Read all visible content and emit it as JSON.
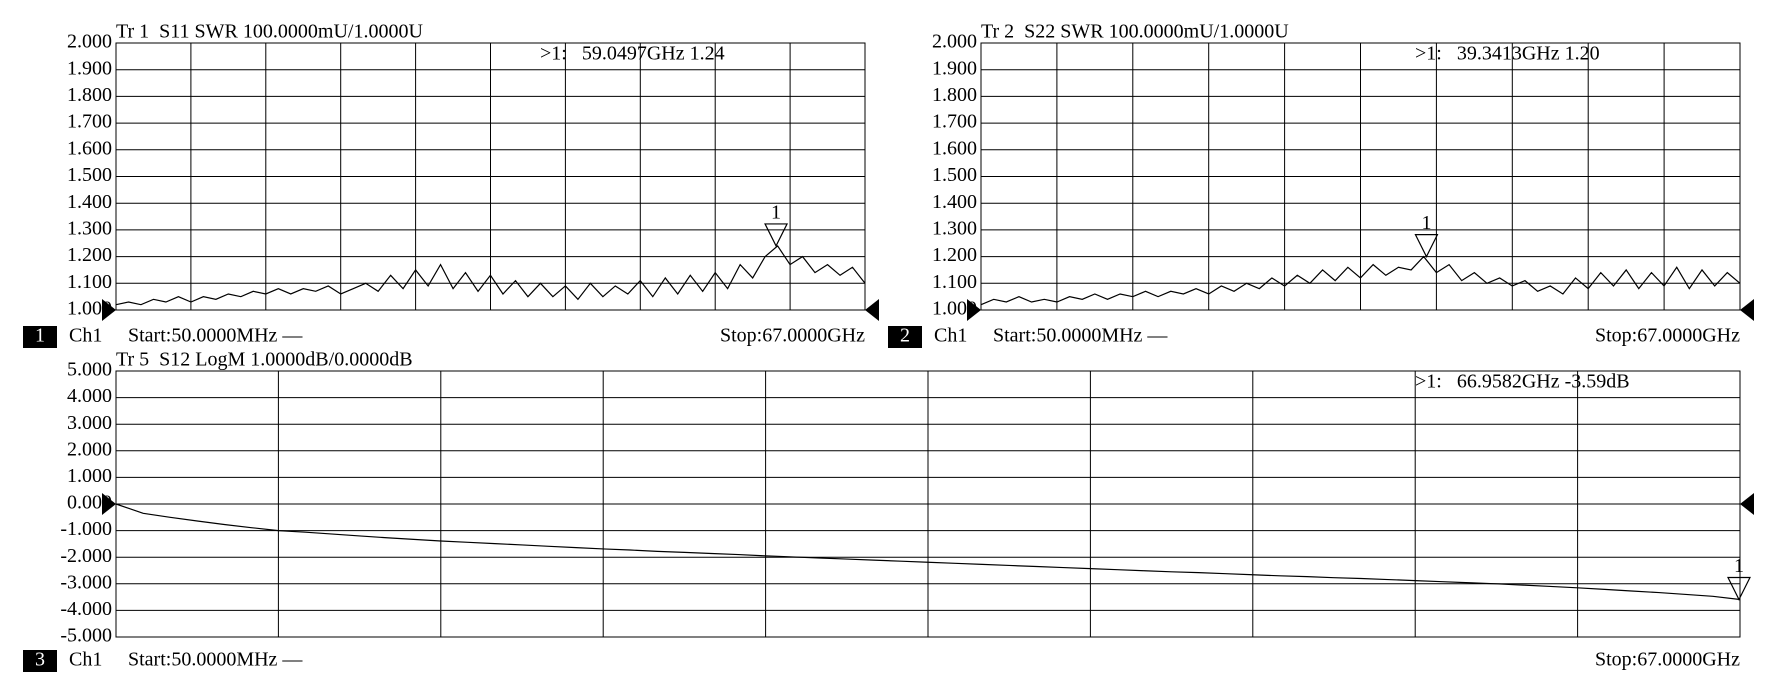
{
  "chart_data": [
    {
      "type": "line",
      "title": "Tr 1  S11 SWR 100.0000mU/1.0000U",
      "channel_number": "1",
      "channel": "Ch1",
      "start_label": "Start:50.0000MHz —",
      "stop_label": "Stop:67.0000GHz",
      "grid": true,
      "reference_level": 1,
      "xlim": [
        0.05,
        67
      ],
      "ylim": [
        1,
        2
      ],
      "yticks": [
        {
          "value": 2,
          "label": "2.000"
        },
        {
          "value": 1.9,
          "label": "1.900"
        },
        {
          "value": 1.8,
          "label": "1.800"
        },
        {
          "value": 1.7,
          "label": "1.700"
        },
        {
          "value": 1.6,
          "label": "1.600"
        },
        {
          "value": 1.5,
          "label": "1.500"
        },
        {
          "value": 1.4,
          "label": "1.400"
        },
        {
          "value": 1.3,
          "label": "1.300"
        },
        {
          "value": 1.2,
          "label": "1.200"
        },
        {
          "value": 1.1,
          "label": "1.100"
        },
        {
          "value": 1,
          "label": "1.000"
        }
      ],
      "x": [
        0.05,
        1.17,
        2.28,
        3.4,
        4.51,
        5.63,
        6.75,
        7.86,
        8.98,
        10.09,
        11.21,
        12.32,
        13.44,
        14.56,
        15.67,
        16.79,
        17.9,
        19.02,
        20.14,
        21.25,
        22.37,
        23.48,
        24.6,
        25.71,
        26.83,
        27.95,
        29.06,
        30.18,
        31.29,
        32.41,
        33.52,
        34.64,
        35.76,
        36.87,
        37.99,
        39.1,
        40.22,
        41.34,
        42.45,
        43.57,
        44.68,
        45.8,
        46.91,
        48.03,
        49.15,
        50.26,
        51.38,
        52.49,
        53.61,
        54.72,
        55.84,
        56.96,
        58.07,
        59.19,
        60.3,
        61.42,
        62.53,
        63.65,
        64.77,
        65.88,
        67.0
      ],
      "series": [
        {
          "name": "S11",
          "color": "#000000",
          "values": [
            1.02,
            1.03,
            1.02,
            1.04,
            1.03,
            1.05,
            1.03,
            1.05,
            1.04,
            1.06,
            1.05,
            1.07,
            1.06,
            1.08,
            1.06,
            1.08,
            1.07,
            1.09,
            1.06,
            1.08,
            1.1,
            1.07,
            1.13,
            1.08,
            1.15,
            1.09,
            1.17,
            1.08,
            1.14,
            1.07,
            1.13,
            1.06,
            1.11,
            1.05,
            1.1,
            1.05,
            1.09,
            1.04,
            1.1,
            1.05,
            1.09,
            1.06,
            1.11,
            1.05,
            1.12,
            1.06,
            1.13,
            1.07,
            1.14,
            1.08,
            1.17,
            1.12,
            1.2,
            1.24,
            1.17,
            1.2,
            1.14,
            1.17,
            1.13,
            1.16,
            1.1
          ]
        }
      ],
      "marker": {
        "label": "1",
        "x": 59.0497,
        "value": 1.24,
        "readout": ">1:   59.0497GHz 1.24"
      }
    },
    {
      "type": "line",
      "title": "Tr 2  S22 SWR 100.0000mU/1.0000U",
      "channel_number": "2",
      "channel": "Ch1",
      "start_label": "Start:50.0000MHz —",
      "stop_label": "Stop:67.0000GHz",
      "grid": true,
      "reference_level": 1,
      "xlim": [
        0.05,
        67
      ],
      "ylim": [
        1,
        2
      ],
      "yticks": [
        {
          "value": 2,
          "label": "2.000"
        },
        {
          "value": 1.9,
          "label": "1.900"
        },
        {
          "value": 1.8,
          "label": "1.800"
        },
        {
          "value": 1.7,
          "label": "1.700"
        },
        {
          "value": 1.6,
          "label": "1.600"
        },
        {
          "value": 1.5,
          "label": "1.500"
        },
        {
          "value": 1.4,
          "label": "1.400"
        },
        {
          "value": 1.3,
          "label": "1.300"
        },
        {
          "value": 1.2,
          "label": "1.200"
        },
        {
          "value": 1.1,
          "label": "1.100"
        },
        {
          "value": 1,
          "label": "1.000"
        }
      ],
      "x": [
        0.05,
        1.17,
        2.28,
        3.4,
        4.51,
        5.63,
        6.75,
        7.86,
        8.98,
        10.09,
        11.21,
        12.32,
        13.44,
        14.56,
        15.67,
        16.79,
        17.9,
        19.02,
        20.14,
        21.25,
        22.37,
        23.48,
        24.6,
        25.71,
        26.83,
        27.95,
        29.06,
        30.18,
        31.29,
        32.41,
        33.52,
        34.64,
        35.76,
        36.87,
        37.99,
        39.1,
        40.22,
        41.34,
        42.45,
        43.57,
        44.68,
        45.8,
        46.91,
        48.03,
        49.15,
        50.26,
        51.38,
        52.49,
        53.61,
        54.72,
        55.84,
        56.96,
        58.07,
        59.19,
        60.3,
        61.42,
        62.53,
        63.65,
        64.77,
        65.88,
        67.0
      ],
      "series": [
        {
          "name": "S22",
          "color": "#000000",
          "values": [
            1.02,
            1.04,
            1.03,
            1.05,
            1.03,
            1.04,
            1.03,
            1.05,
            1.04,
            1.06,
            1.04,
            1.06,
            1.05,
            1.07,
            1.05,
            1.07,
            1.06,
            1.08,
            1.06,
            1.09,
            1.07,
            1.1,
            1.08,
            1.12,
            1.09,
            1.13,
            1.1,
            1.15,
            1.11,
            1.16,
            1.12,
            1.17,
            1.13,
            1.16,
            1.15,
            1.2,
            1.14,
            1.17,
            1.11,
            1.14,
            1.1,
            1.12,
            1.09,
            1.11,
            1.07,
            1.09,
            1.06,
            1.12,
            1.08,
            1.14,
            1.09,
            1.15,
            1.08,
            1.14,
            1.09,
            1.16,
            1.08,
            1.15,
            1.09,
            1.14,
            1.1
          ]
        }
      ],
      "marker": {
        "label": "1",
        "x": 39.3413,
        "value": 1.2,
        "readout": ">1:   39.3413GHz 1.20"
      }
    },
    {
      "type": "line",
      "title": "Tr 5  S12 LogM 1.0000dB/0.0000dB",
      "channel_number": "3",
      "channel": "Ch1",
      "start_label": "Start:50.0000MHz —",
      "stop_label": "Stop:67.0000GHz",
      "grid": true,
      "reference_level": 0,
      "xlim": [
        0.05,
        67
      ],
      "ylim": [
        -5,
        5
      ],
      "yticks": [
        {
          "value": 5,
          "label": "5.000"
        },
        {
          "value": 4,
          "label": "4.000"
        },
        {
          "value": 3,
          "label": "3.000"
        },
        {
          "value": 2,
          "label": "2.000"
        },
        {
          "value": 1,
          "label": "1.000"
        },
        {
          "value": 0,
          "label": "0.000"
        },
        {
          "value": -1,
          "label": "-1.000"
        },
        {
          "value": -2,
          "label": "-2.000"
        },
        {
          "value": -3,
          "label": "-3.000"
        },
        {
          "value": -4,
          "label": "-4.000"
        },
        {
          "value": -5,
          "label": "-5.000"
        }
      ],
      "x": [
        0.05,
        1.17,
        2.28,
        3.4,
        4.51,
        5.63,
        6.75,
        7.86,
        8.98,
        10.09,
        11.21,
        12.32,
        13.44,
        14.56,
        15.67,
        16.79,
        17.9,
        19.02,
        20.14,
        21.25,
        22.37,
        23.48,
        24.6,
        25.71,
        26.83,
        27.95,
        29.06,
        30.18,
        31.29,
        32.41,
        33.52,
        34.64,
        35.76,
        36.87,
        37.99,
        39.1,
        40.22,
        41.34,
        42.45,
        43.57,
        44.68,
        45.8,
        46.91,
        48.03,
        49.15,
        50.26,
        51.38,
        52.49,
        53.61,
        54.72,
        55.84,
        56.96,
        58.07,
        59.19,
        60.3,
        61.42,
        62.53,
        63.65,
        64.77,
        65.88,
        67.0
      ],
      "series": [
        {
          "name": "S12",
          "color": "#000000",
          "values": [
            0,
            -0.35,
            -0.5,
            -0.64,
            -0.77,
            -0.89,
            -1.0,
            -1.06,
            -1.13,
            -1.2,
            -1.27,
            -1.33,
            -1.39,
            -1.44,
            -1.49,
            -1.54,
            -1.59,
            -1.64,
            -1.69,
            -1.73,
            -1.78,
            -1.82,
            -1.86,
            -1.9,
            -1.95,
            -1.99,
            -2.03,
            -2.07,
            -2.11,
            -2.15,
            -2.19,
            -2.23,
            -2.27,
            -2.31,
            -2.35,
            -2.39,
            -2.43,
            -2.47,
            -2.51,
            -2.55,
            -2.58,
            -2.62,
            -2.66,
            -2.7,
            -2.73,
            -2.77,
            -2.8,
            -2.84,
            -2.88,
            -2.92,
            -2.96,
            -3.0,
            -3.05,
            -3.1,
            -3.15,
            -3.21,
            -3.27,
            -3.33,
            -3.4,
            -3.47,
            -3.59
          ]
        }
      ],
      "marker": {
        "label": "1",
        "x": 66.9582,
        "value": -3.59,
        "readout": ">1:   66.9582GHz -3.59dB"
      }
    }
  ]
}
